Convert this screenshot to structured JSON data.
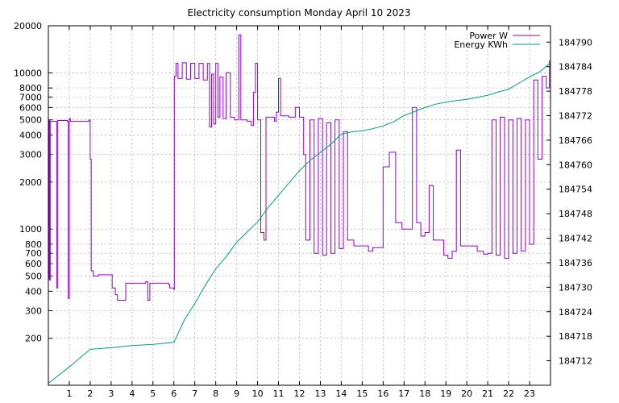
{
  "chart_data": {
    "type": "line",
    "title": "Electricity consumption Monday April 10 2023",
    "xlabel": "",
    "ylabel": "",
    "y2label": "",
    "x_range": [
      0,
      24
    ],
    "y_range": [
      100,
      20000
    ],
    "y_scale": "log",
    "y2_range": [
      184706,
      184794
    ],
    "grid": true,
    "legend_position": "top-right",
    "x_ticks": [
      1,
      2,
      3,
      4,
      5,
      6,
      7,
      8,
      9,
      10,
      11,
      12,
      13,
      14,
      15,
      16,
      17,
      18,
      19,
      20,
      21,
      22,
      23
    ],
    "y_ticks": [
      {
        "value": 200,
        "label": "200"
      },
      {
        "value": 300,
        "label": "300"
      },
      {
        "value": 400,
        "label": "400"
      },
      {
        "value": 500,
        "label": "500"
      },
      {
        "value": 600,
        "label": "600"
      },
      {
        "value": 700,
        "label": "700"
      },
      {
        "value": 800,
        "label": "800"
      },
      {
        "value": 1000,
        "label": "1000"
      },
      {
        "value": 2000,
        "label": "2000"
      },
      {
        "value": 3000,
        "label": "3000"
      },
      {
        "value": 4000,
        "label": "4000"
      },
      {
        "value": 5000,
        "label": "5000"
      },
      {
        "value": 6000,
        "label": "6000"
      },
      {
        "value": 7000,
        "label": "7000"
      },
      {
        "value": 8000,
        "label": "8000"
      },
      {
        "value": 10000,
        "label": "10000"
      },
      {
        "value": 20000,
        "label": "20000"
      }
    ],
    "y2_ticks": [
      184712,
      184718,
      184724,
      184730,
      184736,
      184742,
      184748,
      184754,
      184760,
      184766,
      184772,
      184778,
      184784,
      184790
    ],
    "series": [
      {
        "name": "Power W",
        "axis": "y",
        "color": "#9400d3",
        "points": [
          [
            0.0,
            480
          ],
          [
            0.03,
            5000
          ],
          [
            0.06,
            470
          ],
          [
            0.09,
            4900
          ],
          [
            0.35,
            4900
          ],
          [
            0.4,
            420
          ],
          [
            0.45,
            4950
          ],
          [
            0.9,
            4900
          ],
          [
            0.95,
            360
          ],
          [
            1.0,
            5100
          ],
          [
            1.05,
            4900
          ],
          [
            1.95,
            5000
          ],
          [
            2.0,
            2800
          ],
          [
            2.05,
            540
          ],
          [
            2.15,
            500
          ],
          [
            2.4,
            510
          ],
          [
            2.8,
            510
          ],
          [
            3.05,
            420
          ],
          [
            3.2,
            380
          ],
          [
            3.3,
            350
          ],
          [
            3.65,
            350
          ],
          [
            3.7,
            450
          ],
          [
            4.65,
            460
          ],
          [
            4.75,
            350
          ],
          [
            4.85,
            450
          ],
          [
            5.0,
            450
          ],
          [
            5.75,
            440
          ],
          [
            5.8,
            420
          ],
          [
            6.0,
            410
          ],
          [
            6.02,
            9500
          ],
          [
            6.1,
            11500
          ],
          [
            6.2,
            9200
          ],
          [
            6.4,
            11600
          ],
          [
            6.6,
            9100
          ],
          [
            6.8,
            11500
          ],
          [
            7.0,
            9200
          ],
          [
            7.2,
            11500
          ],
          [
            7.4,
            9000
          ],
          [
            7.6,
            11500
          ],
          [
            7.7,
            4500
          ],
          [
            7.8,
            9800
          ],
          [
            7.9,
            4700
          ],
          [
            8.0,
            11500
          ],
          [
            8.1,
            5200
          ],
          [
            8.2,
            9400
          ],
          [
            8.35,
            5100
          ],
          [
            8.5,
            10000
          ],
          [
            8.7,
            5200
          ],
          [
            8.9,
            5000
          ],
          [
            9.1,
            17500
          ],
          [
            9.2,
            5000
          ],
          [
            9.5,
            4900
          ],
          [
            9.7,
            4600
          ],
          [
            9.8,
            7500
          ],
          [
            9.9,
            11500
          ],
          [
            10.0,
            5000
          ],
          [
            10.15,
            950
          ],
          [
            10.3,
            850
          ],
          [
            10.4,
            5200
          ],
          [
            10.8,
            4900
          ],
          [
            10.9,
            5600
          ],
          [
            11.0,
            9200
          ],
          [
            11.1,
            5300
          ],
          [
            11.5,
            5200
          ],
          [
            11.8,
            6000
          ],
          [
            12.0,
            5200
          ],
          [
            12.2,
            3000
          ],
          [
            12.3,
            850
          ],
          [
            12.5,
            5000
          ],
          [
            12.7,
            700
          ],
          [
            12.9,
            5100
          ],
          [
            13.1,
            680
          ],
          [
            13.3,
            4800
          ],
          [
            13.5,
            700
          ],
          [
            13.7,
            5000
          ],
          [
            13.9,
            750
          ],
          [
            14.1,
            4200
          ],
          [
            14.3,
            850
          ],
          [
            14.6,
            780
          ],
          [
            15.3,
            720
          ],
          [
            15.5,
            760
          ],
          [
            16.0,
            2500
          ],
          [
            16.3,
            3100
          ],
          [
            16.6,
            1100
          ],
          [
            16.9,
            1000
          ],
          [
            17.2,
            1000
          ],
          [
            17.4,
            6000
          ],
          [
            17.6,
            1100
          ],
          [
            17.8,
            900
          ],
          [
            18.0,
            950
          ],
          [
            18.2,
            1900
          ],
          [
            18.4,
            850
          ],
          [
            18.7,
            850
          ],
          [
            18.9,
            680
          ],
          [
            19.1,
            650
          ],
          [
            19.3,
            720
          ],
          [
            19.5,
            3200
          ],
          [
            19.7,
            780
          ],
          [
            20.0,
            780
          ],
          [
            20.5,
            720
          ],
          [
            20.8,
            690
          ],
          [
            21.0,
            700
          ],
          [
            21.2,
            5000
          ],
          [
            21.4,
            680
          ],
          [
            21.6,
            5200
          ],
          [
            21.8,
            650
          ],
          [
            22.0,
            5000
          ],
          [
            22.2,
            700
          ],
          [
            22.4,
            5100
          ],
          [
            22.6,
            720
          ],
          [
            22.8,
            5000
          ],
          [
            23.0,
            800
          ],
          [
            23.2,
            9000
          ],
          [
            23.4,
            2800
          ],
          [
            23.6,
            9500
          ],
          [
            23.8,
            8000
          ],
          [
            23.95,
            12000
          ]
        ]
      },
      {
        "name": "Energy KWh",
        "axis": "y2",
        "color": "#009e73",
        "points": [
          [
            0.0,
            184706.5
          ],
          [
            1.0,
            184710.5
          ],
          [
            2.0,
            184714.8
          ],
          [
            3.0,
            184715.2
          ],
          [
            4.0,
            184715.7
          ],
          [
            5.0,
            184716.0
          ],
          [
            6.0,
            184716.5
          ],
          [
            6.5,
            184722.0
          ],
          [
            7.0,
            184726.0
          ],
          [
            7.5,
            184730.5
          ],
          [
            8.0,
            184734.5
          ],
          [
            8.5,
            184737.5
          ],
          [
            9.0,
            184741.0
          ],
          [
            9.5,
            184743.5
          ],
          [
            10.0,
            184746.0
          ],
          [
            10.5,
            184749.5
          ],
          [
            11.0,
            184752.5
          ],
          [
            11.5,
            184755.5
          ],
          [
            12.0,
            184758.5
          ],
          [
            12.5,
            184761.0
          ],
          [
            13.0,
            184763.0
          ],
          [
            13.5,
            184765.0
          ],
          [
            14.0,
            184767.5
          ],
          [
            14.5,
            184768.0
          ],
          [
            15.0,
            184768.3
          ],
          [
            15.5,
            184768.8
          ],
          [
            16.0,
            184769.5
          ],
          [
            16.5,
            184770.5
          ],
          [
            17.0,
            184772.0
          ],
          [
            17.5,
            184773.0
          ],
          [
            18.0,
            184774.0
          ],
          [
            18.5,
            184774.8
          ],
          [
            19.0,
            184775.3
          ],
          [
            19.5,
            184775.7
          ],
          [
            20.0,
            184776.0
          ],
          [
            20.5,
            184776.5
          ],
          [
            21.0,
            184777.0
          ],
          [
            21.5,
            184777.8
          ],
          [
            22.0,
            184778.5
          ],
          [
            22.5,
            184780.0
          ],
          [
            23.0,
            184781.5
          ],
          [
            23.5,
            184782.8
          ],
          [
            24.0,
            184785.0
          ]
        ]
      }
    ]
  }
}
